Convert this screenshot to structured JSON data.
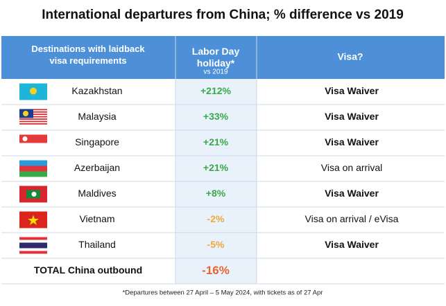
{
  "title": "International departures from China; % difference vs 2019",
  "table": {
    "header": {
      "destinations": "Destinations with laidback visa requirements",
      "holiday": "Labor Day holiday*",
      "holiday_sub": "vs 2019",
      "visa": "Visa?"
    },
    "rows": [
      {
        "country": "Kazakhstan",
        "change": "+212%",
        "visa": "Visa Waiver",
        "visa_bold": true,
        "color": "#3aa84a"
      },
      {
        "country": "Malaysia",
        "change": "+33%",
        "visa": "Visa Waiver",
        "visa_bold": true,
        "color": "#3aa84a"
      },
      {
        "country": "Singapore",
        "change": "+21%",
        "visa": "Visa Waiver",
        "visa_bold": true,
        "color": "#3aa84a"
      },
      {
        "country": "Azerbaijan",
        "change": "+21%",
        "visa": "Visa on arrival",
        "visa_bold": false,
        "color": "#3aa84a"
      },
      {
        "country": "Maldives",
        "change": "+8%",
        "visa": "Visa Waiver",
        "visa_bold": true,
        "color": "#3aa84a"
      },
      {
        "country": "Vietnam",
        "change": "-2%",
        "visa": "Visa on arrival / eVisa",
        "visa_bold": false,
        "color": "#f0a83a"
      },
      {
        "country": "Thailand",
        "change": "-5%",
        "visa": "Visa Waiver",
        "visa_bold": true,
        "color": "#f0a83a"
      }
    ],
    "total": {
      "label": "TOTAL China outbound",
      "change": "-16%",
      "color": "#e8652e"
    }
  },
  "footnote": "*Departures between 27 April – 5 May 2024, with tickets as of 27 Apr"
}
